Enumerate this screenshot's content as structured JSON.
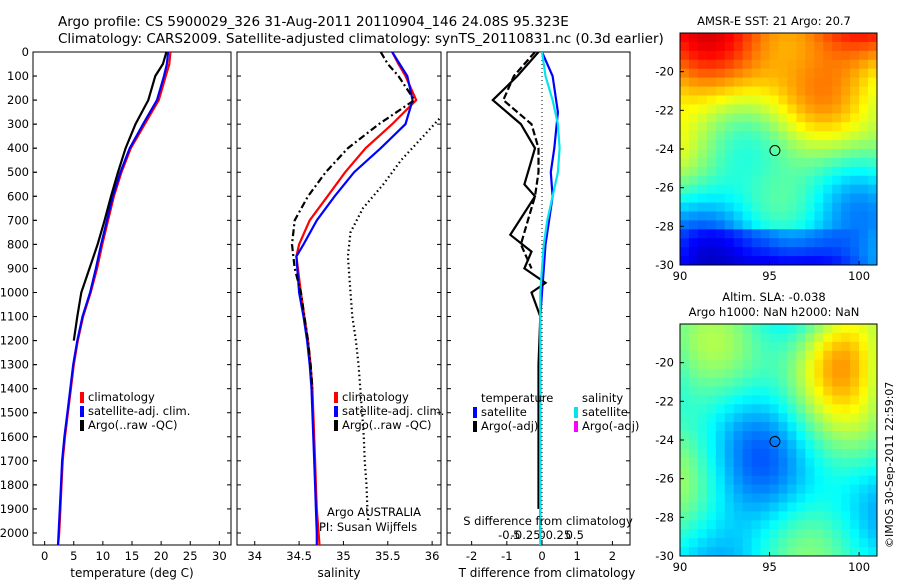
{
  "header": {
    "line1": "Argo profile: CS 5900029_326 31-Aug-2011 20110904_146 24.08S 95.323E",
    "line2": "Climatology: CARS2009. Satellite-adjusted climatology: synTS_20110831.nc (0.3d earlier)"
  },
  "side_stamp": "©IMOS 30-Sep-2011 22:59:07",
  "colors": {
    "climatology": "#ff0000",
    "satellite": "#0000ff",
    "argo": "#000000",
    "sal_satellite": "#00e5ee",
    "sal_argo": "#ff00ff"
  },
  "chart_data": [
    {
      "id": "temperature",
      "type": "line",
      "xlabel": "temperature (deg C)",
      "xlim": [
        -2,
        32
      ],
      "ylim": [
        0,
        2050
      ],
      "y_reversed": true,
      "xticks": [
        0,
        5,
        10,
        15,
        20,
        25,
        30
      ],
      "xtick_labels": [
        "0",
        "5",
        "10",
        "15",
        "20",
        "25",
        "30"
      ],
      "legend": [
        "climatology",
        "satellite-adj. clim.",
        "Argo(..raw -QC)"
      ],
      "series": [
        {
          "name": "climatology",
          "color": "#ff0000",
          "dash": "",
          "x": [
            21.6,
            21.4,
            20.8,
            19.6,
            17.2,
            14.8,
            13.2,
            11.9,
            10.9,
            9.9,
            9.0,
            7.9,
            6.6,
            5.7,
            5.0,
            4.5,
            4.0,
            3.5,
            3.1,
            2.9,
            2.7,
            2.5,
            2.4,
            2.3
          ],
          "y": [
            0,
            50,
            100,
            200,
            300,
            400,
            500,
            600,
            700,
            800,
            900,
            1000,
            1100,
            1200,
            1300,
            1400,
            1500,
            1600,
            1700,
            1800,
            1900,
            2000,
            2030,
            2050
          ]
        },
        {
          "name": "satellite-adj. clim.",
          "color": "#0000ff",
          "dash": "",
          "x": [
            21.2,
            21.0,
            20.5,
            19.3,
            16.9,
            14.6,
            13.0,
            11.7,
            10.7,
            9.7,
            8.8,
            7.8,
            6.5,
            5.6,
            4.9,
            4.4,
            3.9,
            3.4,
            3.0,
            2.8,
            2.6,
            2.4,
            2.3
          ],
          "y": [
            0,
            50,
            100,
            200,
            300,
            400,
            500,
            600,
            700,
            800,
            900,
            1000,
            1100,
            1200,
            1300,
            1400,
            1500,
            1600,
            1700,
            1800,
            1900,
            2000,
            2050
          ]
        },
        {
          "name": "Argo(..raw -QC)",
          "color": "#000000",
          "dash": "",
          "x": [
            20.9,
            20.3,
            19.0,
            17.8,
            15.6,
            13.9,
            12.6,
            11.4,
            10.3,
            9.1,
            7.7,
            6.3,
            5.6,
            5.0
          ],
          "y": [
            0,
            50,
            100,
            200,
            300,
            400,
            500,
            600,
            700,
            800,
            900,
            1000,
            1100,
            1200
          ]
        }
      ]
    },
    {
      "id": "salinity",
      "type": "line",
      "xlabel": "salinity",
      "xlim": [
        33.8,
        36.1
      ],
      "ylim": [
        0,
        2050
      ],
      "y_reversed": true,
      "xticks": [
        34,
        34.5,
        35,
        35.5,
        36
      ],
      "xtick_labels": [
        "34",
        "34.5",
        "35",
        "35.5",
        "36"
      ],
      "legend": [
        "climatology",
        "satellite-adj. clim.",
        "Argo(..raw -QC)"
      ],
      "annotation": [
        "Argo AUSTRALIA",
        "PI: Susan Wijffels"
      ],
      "series": [
        {
          "name": "climatology",
          "color": "#ff0000",
          "dash": "",
          "x": [
            35.55,
            35.62,
            35.7,
            35.82,
            35.55,
            35.25,
            35.02,
            34.82,
            34.62,
            34.5,
            34.47,
            34.52,
            34.56,
            34.6,
            34.63,
            34.65,
            34.66,
            34.67,
            34.68,
            34.69,
            34.7,
            34.72,
            34.73
          ],
          "y": [
            0,
            50,
            100,
            200,
            300,
            400,
            500,
            600,
            700,
            800,
            850,
            1000,
            1100,
            1200,
            1300,
            1400,
            1500,
            1600,
            1700,
            1800,
            1900,
            2000,
            2050
          ]
        },
        {
          "name": "satellite-adj. clim.",
          "color": "#0000ff",
          "dash": "",
          "x": [
            35.55,
            35.6,
            35.72,
            35.78,
            35.7,
            35.42,
            35.12,
            34.9,
            34.7,
            34.55,
            34.47,
            34.5,
            34.55,
            34.59,
            34.62,
            34.64,
            34.65,
            34.66,
            34.67,
            34.68,
            34.69,
            34.7,
            34.7
          ],
          "y": [
            0,
            30,
            100,
            200,
            300,
            400,
            500,
            600,
            700,
            800,
            850,
            1000,
            1100,
            1200,
            1300,
            1400,
            1500,
            1600,
            1700,
            1800,
            1900,
            2000,
            2050
          ]
        },
        {
          "name": "Argo(..raw -QC)",
          "color": "#000000",
          "dash": "7,3,2,3",
          "x": [
            35.42,
            35.5,
            35.62,
            35.8,
            35.4,
            35.05,
            34.8,
            34.6,
            34.45,
            34.42,
            34.45,
            34.52,
            34.56,
            34.6,
            34.63,
            34.65
          ],
          "y": [
            0,
            50,
            100,
            200,
            300,
            400,
            500,
            600,
            700,
            800,
            900,
            1000,
            1100,
            1200,
            1300,
            1400
          ]
        },
        {
          "name": "Argo_dots",
          "color": "#000000",
          "dash": "1.5,3",
          "x": [
            36.15,
            35.9,
            35.65,
            35.45,
            35.22,
            35.08,
            35.05,
            35.08,
            35.1,
            35.14,
            35.17,
            35.19,
            35.21,
            35.23,
            35.24,
            35.26,
            35.27,
            35.28
          ],
          "y": [
            250,
            350,
            450,
            550,
            650,
            750,
            850,
            1000,
            1100,
            1200,
            1300,
            1400,
            1500,
            1600,
            1700,
            1800,
            1900,
            1950
          ]
        }
      ]
    },
    {
      "id": "difference",
      "type": "line",
      "xlabel": "T difference from climatology",
      "xlabel_top": "S difference from climatology",
      "xlim": [
        -2.7,
        2.5
      ],
      "ylim": [
        0,
        2050
      ],
      "y_reversed": true,
      "xticks": [
        -2,
        -1,
        0,
        1,
        2
      ],
      "xtick_labels": [
        "-2",
        "-1",
        "0",
        "1",
        "2"
      ],
      "xticks_top": [
        -0.5,
        -0.25,
        0,
        0.25,
        0.5
      ],
      "xtick_top_labels": [
        "-0.5",
        "-0.25",
        "0",
        "0.25",
        "0.5"
      ],
      "legend_headings": [
        "temperature",
        "salinity"
      ],
      "legend": [
        "satellite",
        "Argo(-adj)",
        "satellite",
        "Argo(-adj)"
      ],
      "series": [
        {
          "name": "temperature satellite",
          "color": "#0000ff",
          "dash": "",
          "x": [
            0.0,
            0.3,
            0.45,
            0.35,
            0.25,
            0.3,
            0.2,
            0.1,
            0.05,
            0.0,
            -0.05,
            -0.05,
            -0.05,
            -0.05,
            -0.05,
            -0.05,
            -0.05,
            -0.05
          ],
          "y": [
            0,
            100,
            250,
            400,
            500,
            600,
            700,
            800,
            900,
            1000,
            1100,
            1300,
            1500,
            1600,
            1700,
            1800,
            1900,
            2000
          ]
        },
        {
          "name": "temperature Argo(-adj)",
          "color": "#000000",
          "dash": "",
          "x": [
            -0.1,
            -0.7,
            -1.4,
            -1.0,
            -0.6,
            -0.2,
            -0.3,
            -0.5,
            -0.2,
            -0.9,
            -0.3,
            -0.5,
            0.1,
            -0.3,
            -0.05,
            -0.1,
            -0.1,
            -0.1
          ],
          "y": [
            0,
            100,
            200,
            250,
            300,
            400,
            450,
            550,
            600,
            760,
            830,
            900,
            960,
            1000,
            1100,
            1300,
            1500,
            1900
          ]
        },
        {
          "name": "salinity satellite",
          "color": "#00e5ee",
          "dash": "",
          "x": [
            0.0,
            0.1,
            0.3,
            0.45,
            0.5,
            0.45,
            0.3,
            0.15,
            0.05,
            0.0,
            -0.05,
            -0.05,
            -0.05,
            -0.05,
            -0.05,
            -0.05
          ],
          "y": [
            0,
            100,
            200,
            300,
            400,
            500,
            600,
            700,
            800,
            900,
            1000,
            1100,
            1300,
            1500,
            1800,
            2050
          ]
        },
        {
          "name": "salinity Argo(-adj)",
          "color": "#000000",
          "dash": "7,3",
          "x": [
            -0.2,
            -0.8,
            -1.1,
            -0.7,
            -0.3,
            -0.1,
            -0.1,
            -0.2,
            -0.4,
            -0.6,
            -0.3
          ],
          "y": [
            0,
            100,
            200,
            250,
            300,
            400,
            500,
            600,
            700,
            800,
            900
          ]
        }
      ]
    },
    {
      "id": "sst_map",
      "type": "heatmap",
      "title": "AMSR-E SST: 21 Argo: 20.7",
      "xlim": [
        90,
        101
      ],
      "ylim": [
        -30,
        -18
      ],
      "xticks": [
        90,
        95,
        100
      ],
      "xtick_labels": [
        "90",
        "95",
        "100"
      ],
      "yticks": [
        -20,
        -22,
        -24,
        -26,
        -28,
        -30
      ],
      "ytick_labels": [
        "-20",
        "-22",
        "-24",
        "-26",
        "-28",
        "-30"
      ],
      "marker": {
        "lon": 95.3,
        "lat": -24.08
      }
    },
    {
      "id": "sla_map",
      "type": "heatmap",
      "title": [
        "Altim. SLA: -0.038",
        "Argo h1000: NaN h2000: NaN"
      ],
      "xlim": [
        90,
        101
      ],
      "ylim": [
        -30,
        -18
      ],
      "xticks": [
        90,
        95,
        100
      ],
      "xtick_labels": [
        "90",
        "95",
        "100"
      ],
      "yticks": [
        -20,
        -22,
        -24,
        -26,
        -28,
        -30
      ],
      "ytick_labels": [
        "-20",
        "-22",
        "-24",
        "-26",
        "-28",
        "-30"
      ],
      "marker": {
        "lon": 95.3,
        "lat": -24.08
      }
    }
  ],
  "depth_axis": {
    "ticks": [
      0,
      100,
      200,
      300,
      400,
      500,
      600,
      700,
      800,
      900,
      1000,
      1100,
      1200,
      1300,
      1400,
      1500,
      1600,
      1700,
      1800,
      1900,
      2000
    ],
    "labels": [
      "0",
      "100",
      "200",
      "300",
      "400",
      "500",
      "600",
      "700",
      "800",
      "900",
      "1000",
      "1100",
      "1200",
      "1300",
      "1400",
      "1500",
      "1600",
      "1700",
      "1800",
      "1900",
      "2000"
    ]
  }
}
